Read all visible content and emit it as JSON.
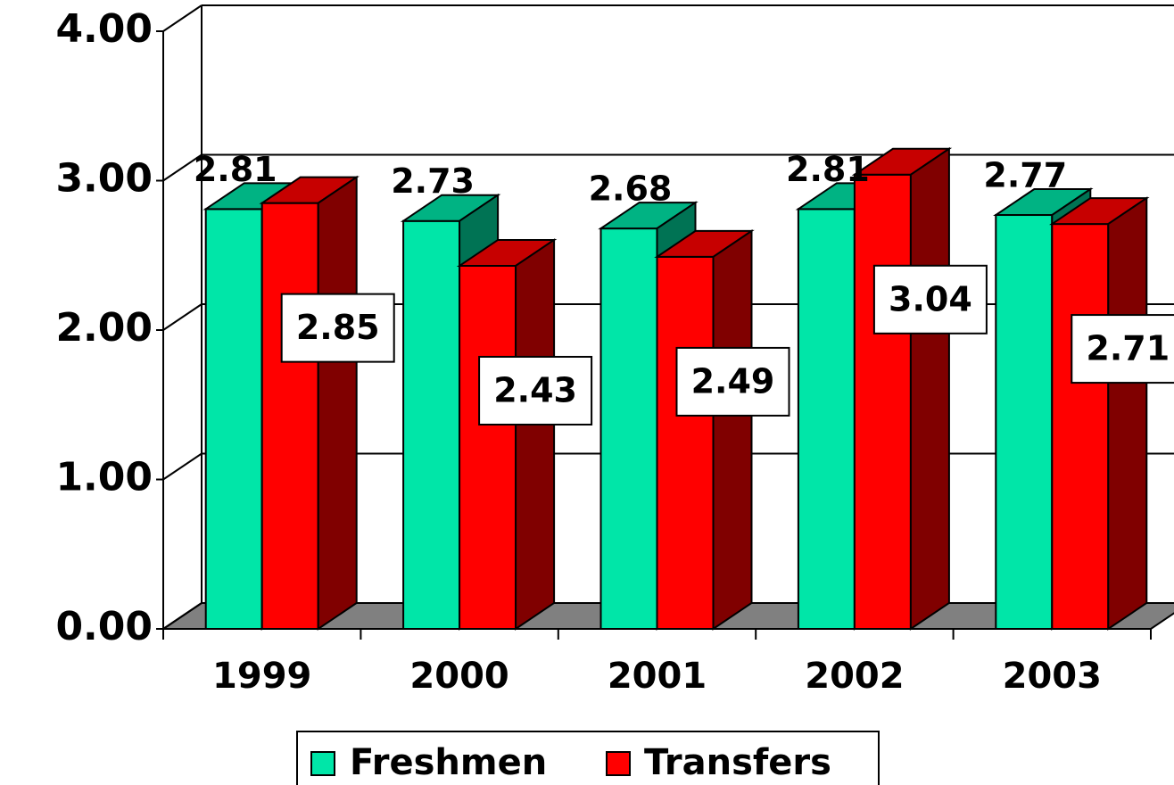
{
  "chart_data": {
    "type": "bar3d",
    "categories": [
      "1999",
      "2000",
      "2001",
      "2002",
      "2003"
    ],
    "series": [
      {
        "name": "Freshmen",
        "color": "#00e6a8",
        "values": [
          2.81,
          2.73,
          2.68,
          2.81,
          2.77
        ]
      },
      {
        "name": "Transfers",
        "color": "#ff0000",
        "values": [
          2.85,
          2.43,
          2.49,
          3.04,
          2.71
        ]
      }
    ],
    "ylim": [
      0,
      4
    ],
    "yticks": [
      {
        "value": 0,
        "label": "0.00"
      },
      {
        "value": 1,
        "label": "1.00"
      },
      {
        "value": 2,
        "label": "2.00"
      },
      {
        "value": 3,
        "label": "3.00"
      },
      {
        "value": 4,
        "label": "4.00"
      }
    ],
    "grid": true
  }
}
